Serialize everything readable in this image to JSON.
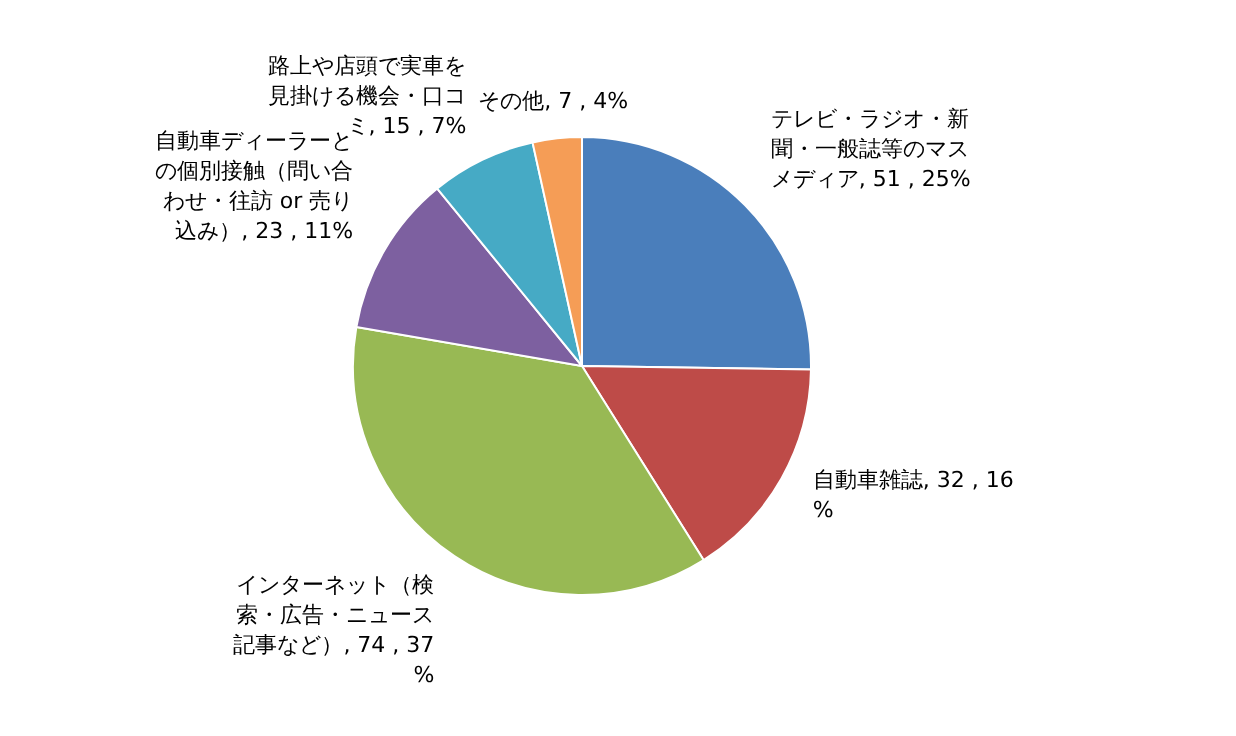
{
  "chart_data": {
    "type": "pie",
    "categories": [
      "テレビ・ラジオ・新聞・一般誌等のマスメディア",
      "自動車雑誌",
      "インターネット（検索・広告・ニュース記事など）",
      "自動車ディーラーとの個別接触（問い合わせ・往訪 or 売り込み）",
      "路上や店頭で実車を見掛ける機会・口コミ",
      "その他"
    ],
    "values": [
      51,
      32,
      74,
      23,
      15,
      7
    ],
    "value_labels": [
      "51 , 25%",
      "32 , 16%",
      "74 , 37%",
      "23 , 11%",
      "15 , 7%",
      "7 , 4%"
    ],
    "colors": [
      "#4a7ebb",
      "#be4b48",
      "#98b954",
      "#7d60a0",
      "#46aac5",
      "#f59d56"
    ],
    "legend": false
  }
}
